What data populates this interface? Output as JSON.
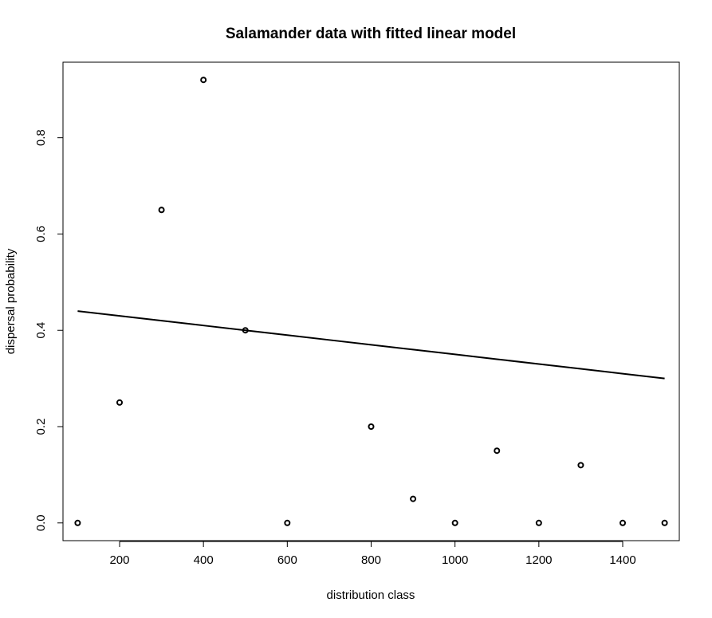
{
  "chart_data": {
    "type": "scatter",
    "title": "Salamander data with fitted linear model",
    "xlabel": "distribution class",
    "ylabel": "dispersal probability",
    "xlim": [
      65,
      1535
    ],
    "ylim": [
      -0.0368,
      0.9568
    ],
    "x_ticks": [
      200,
      400,
      600,
      800,
      1000,
      1200,
      1400
    ],
    "x_tick_labels": [
      "200",
      "400",
      "600",
      "800",
      "1000",
      "1200",
      "1400"
    ],
    "y_ticks": [
      0.0,
      0.2,
      0.4,
      0.6,
      0.8
    ],
    "y_tick_labels": [
      "0.0",
      "0.2",
      "0.4",
      "0.6",
      "0.8"
    ],
    "grid": false,
    "legend": "none",
    "series": [
      {
        "kind": "points",
        "marker": "open-circle",
        "color": "#000000",
        "x": [
          100,
          200,
          300,
          400,
          500,
          600,
          800,
          900,
          1000,
          1100,
          1200,
          1300,
          1400,
          1500
        ],
        "y": [
          0.0,
          0.25,
          0.65,
          0.92,
          0.4,
          0.0,
          0.2,
          0.05,
          0.0,
          0.15,
          0.0,
          0.12,
          0.0,
          0.0
        ]
      },
      {
        "kind": "line",
        "color": "#000000",
        "x": [
          100,
          200,
          300,
          400,
          500,
          600,
          700,
          800,
          900,
          1000,
          1100,
          1200,
          1300,
          1400,
          1500
        ],
        "y": [
          0.44,
          0.43,
          0.42,
          0.41,
          0.4,
          0.39,
          0.38,
          0.37,
          0.36,
          0.35,
          0.34,
          0.33,
          0.32,
          0.31,
          0.3
        ]
      }
    ]
  }
}
